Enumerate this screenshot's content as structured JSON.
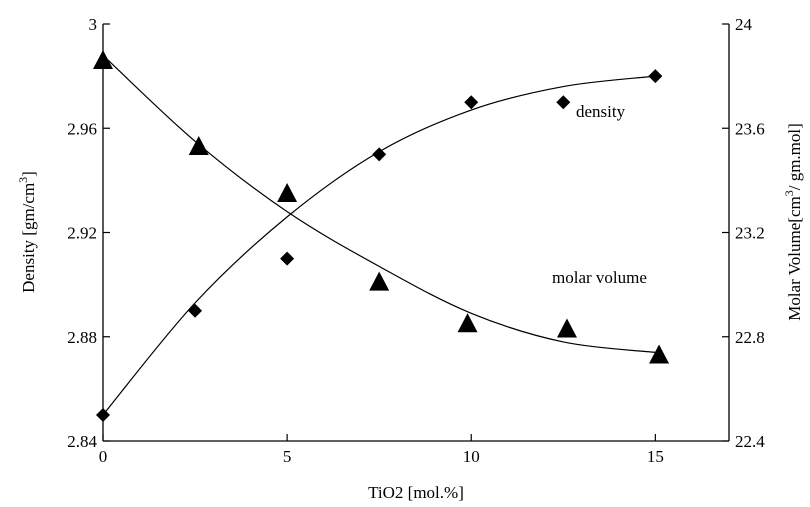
{
  "chart_data": {
    "type": "scatter",
    "xlabel": "TiO2 [mol.%]",
    "ylabel_left": {
      "text": "Density [gm/cm",
      "sup": "3",
      "tail": "]"
    },
    "ylabel_right": {
      "text": "Molar Volume[cm",
      "sup": "3",
      "tail": "/ gm.mol]"
    },
    "xlim": [
      0,
      17
    ],
    "ylim_left": [
      2.84,
      3.0
    ],
    "ylim_right": [
      22.4,
      24.0
    ],
    "x_ticks": [
      "0",
      "5",
      "10",
      "15"
    ],
    "x_tick_values": [
      0,
      5,
      10,
      15
    ],
    "y_left_ticks": [
      "2.84",
      "2.88",
      "2.92",
      "2.96",
      "3"
    ],
    "y_left_tick_values": [
      2.84,
      2.88,
      2.92,
      2.96,
      3.0
    ],
    "y_right_ticks": [
      "22.4",
      "22.8",
      "23.2",
      "23.6",
      "24"
    ],
    "y_right_tick_values": [
      22.4,
      22.8,
      23.2,
      23.6,
      24.0
    ],
    "grid": false,
    "series": [
      {
        "name": "density",
        "axis": "left",
        "marker": "diamond",
        "x": [
          0,
          2.5,
          5,
          7.5,
          10,
          12.5,
          15
        ],
        "y": [
          2.85,
          2.89,
          2.91,
          2.95,
          2.97,
          2.97,
          2.98
        ],
        "fit": [
          [
            0,
            2.85
          ],
          [
            2.5,
            2.893
          ],
          [
            5,
            2.926
          ],
          [
            7.5,
            2.951
          ],
          [
            10,
            2.967
          ],
          [
            12.5,
            2.976
          ],
          [
            15,
            2.98
          ]
        ]
      },
      {
        "name": "molar volume",
        "axis": "right",
        "marker": "triangle",
        "x": [
          0,
          2.6,
          5,
          7.5,
          9.9,
          12.6,
          15.1
        ],
        "y": [
          23.86,
          23.53,
          23.35,
          23.01,
          22.85,
          22.83,
          22.73
        ],
        "fit": [
          [
            0,
            23.88
          ],
          [
            2.5,
            23.55
          ],
          [
            5,
            23.28
          ],
          [
            7.5,
            23.07
          ],
          [
            10,
            22.89
          ],
          [
            12.5,
            22.78
          ],
          [
            15,
            22.74
          ]
        ]
      }
    ],
    "annotations": {
      "density": "density",
      "molar_volume": "molar volume"
    }
  }
}
